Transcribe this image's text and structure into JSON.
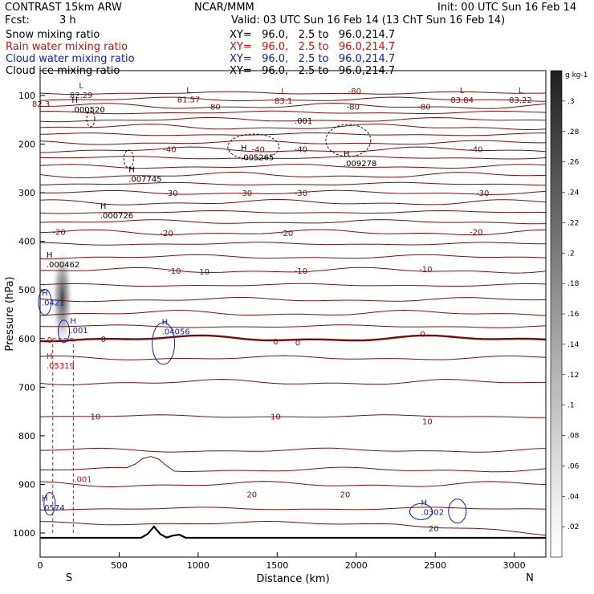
{
  "header": {
    "model": "CONTRAST 15km ARW",
    "center": "NCAR/MMM",
    "init": "Init: 00 UTC Sun 16 Feb 14",
    "fcst_label": "Fcst:",
    "fcst_value": "3 h",
    "valid": "Valid: 03 UTC Sun 16 Feb 14 (13 ChT Sun 16 Feb 14)"
  },
  "fields": [
    {
      "name": "Snow mixing ratio",
      "xy": "XY=   96.0,   2.5 to   96.0,214.7",
      "color": "#000000"
    },
    {
      "name": "Rain water mixing ratio",
      "xy": "XY=   96.0,   2.5 to   96.0,214.7",
      "color": "#d01010"
    },
    {
      "name": "Cloud water mixing ratio",
      "xy": "XY=   96.0,   2.5 to   96.0,214.7",
      "color": "#1020c0"
    },
    {
      "name": "Cloud ice mixing ratio",
      "xy": "XY=   96.0,   2.5 to   96.0,214.7",
      "color": "#000000"
    }
  ],
  "chart_data": {
    "type": "cross-section contour",
    "xlabel": "Distance (km)",
    "ylabel": "Pressure (hPa)",
    "x_ticks": [
      0,
      500,
      1000,
      1500,
      2000,
      2500,
      3000
    ],
    "y_ticks": [
      100,
      200,
      300,
      400,
      500,
      600,
      700,
      800,
      900,
      1000
    ],
    "xlim": [
      0,
      3200
    ],
    "ylim_hpa": [
      1020,
      60
    ],
    "end_labels": {
      "left": "S",
      "right": "N"
    },
    "colorbar": {
      "unit": "g kg-1",
      "ticks": [
        ".02",
        ".04",
        ".06",
        ".08",
        ".1",
        ".12",
        ".14",
        ".16",
        ".18",
        ".2",
        ".22",
        ".24",
        ".26",
        ".28",
        ".3"
      ],
      "range": [
        0,
        0.32
      ]
    },
    "temperature_contours": {
      "color": "#7a1010",
      "zero_color": "#7a0a0a",
      "levels": [
        {
          "label": "-80",
          "x": 1100,
          "p": 122
        },
        {
          "label": "-80",
          "x": 1980,
          "p": 122
        },
        {
          "label": "-80",
          "x": 2430,
          "p": 122
        },
        {
          "label": "-80",
          "x": 1990,
          "p": 90
        },
        {
          "label": "-40",
          "x": 820,
          "p": 210
        },
        {
          "label": "-40",
          "x": 1380,
          "p": 210
        },
        {
          "label": "-40",
          "x": 1650,
          "p": 210
        },
        {
          "label": "-40",
          "x": 2760,
          "p": 210
        },
        {
          "label": "-30",
          "x": 830,
          "p": 300
        },
        {
          "label": "-30",
          "x": 1300,
          "p": 300
        },
        {
          "label": "-30",
          "x": 1650,
          "p": 300
        },
        {
          "label": "-30",
          "x": 2800,
          "p": 300
        },
        {
          "label": "-20",
          "x": 120,
          "p": 380
        },
        {
          "label": "-20",
          "x": 800,
          "p": 382
        },
        {
          "label": "-20",
          "x": 1560,
          "p": 382
        },
        {
          "label": "-20",
          "x": 2760,
          "p": 380
        },
        {
          "label": "-10",
          "x": 850,
          "p": 460
        },
        {
          "label": "-10",
          "x": 1030,
          "p": 462
        },
        {
          "label": "-10",
          "x": 1650,
          "p": 460
        },
        {
          "label": "-10",
          "x": 2440,
          "p": 457
        },
        {
          "label": "0",
          "x": 60,
          "p": 602
        },
        {
          "label": "0",
          "x": 400,
          "p": 600
        },
        {
          "label": "0",
          "x": 1490,
          "p": 605
        },
        {
          "label": "0",
          "x": 1630,
          "p": 608
        },
        {
          "label": "0",
          "x": 2420,
          "p": 590
        },
        {
          "label": "10",
          "x": 350,
          "p": 760
        },
        {
          "label": "10",
          "x": 1490,
          "p": 760
        },
        {
          "label": "10",
          "x": 2450,
          "p": 770
        },
        {
          "label": "20",
          "x": 1340,
          "p": 920
        },
        {
          "label": "20",
          "x": 1930,
          "p": 920
        },
        {
          "label": "20",
          "x": 2490,
          "p": 990
        }
      ],
      "extrema": [
        {
          "marker": "L",
          "value": "82.29",
          "x": 260,
          "p": 95
        },
        {
          "marker": "L",
          "value": "81.57",
          "x": 940,
          "p": 104
        },
        {
          "marker": "L",
          "value": "83.1",
          "x": 1540,
          "p": 107
        },
        {
          "marker": "L",
          "value": "83.84",
          "x": 2670,
          "p": 105
        },
        {
          "marker": "L",
          "value": "83.22",
          "x": 3040,
          "p": 105
        },
        {
          "marker": "",
          "value": "82.3",
          "x": 5,
          "p": 113
        }
      ]
    },
    "snow_field": {
      "color": "#000000",
      "contour_label": ".001",
      "maxima": [
        {
          "value": ".000520",
          "x": 200,
          "p": 128
        },
        {
          "value": ".005265",
          "x": 1270,
          "p": 226
        },
        {
          "value": ".009278",
          "x": 1920,
          "p": 239
        },
        {
          "value": ".007745",
          "x": 560,
          "p": 271
        },
        {
          "value": ".000726",
          "x": 380,
          "p": 346
        },
        {
          "value": ".000462",
          "x": 40,
          "p": 447
        }
      ]
    },
    "rain_field": {
      "color": "#d01010",
      "contour_label": ".001",
      "maxima": [
        {
          "value": ".05319",
          "x": 40,
          "p": 655
        }
      ]
    },
    "cloud_water_field": {
      "color": "#1020c0",
      "maxima": [
        {
          "value": ".0421",
          "x": 10,
          "p": 525
        },
        {
          "value": ".001",
          "x": 190,
          "p": 582
        },
        {
          "value": ".04056",
          "x": 770,
          "p": 585
        },
        {
          "value": ".0302",
          "x": 2410,
          "p": 956
        },
        {
          "value": ".0574",
          "x": 10,
          "p": 947
        }
      ]
    },
    "ice_field": {
      "shading_center_x": 140,
      "shading_p_range": [
        430,
        600
      ],
      "max_value": ".2"
    }
  }
}
